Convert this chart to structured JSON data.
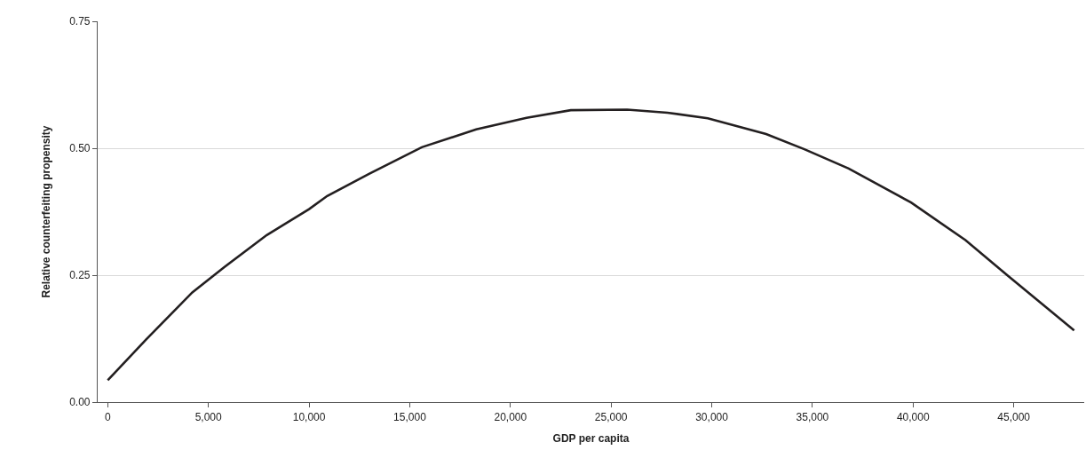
{
  "chart_data": {
    "type": "line",
    "xlabel": "GDP per capita",
    "ylabel": "Relative counterfeiting propensity",
    "x": [
      0,
      1900,
      4200,
      5800,
      7900,
      10000,
      10900,
      13000,
      15600,
      18300,
      20800,
      23000,
      25800,
      27800,
      29800,
      32700,
      34600,
      36800,
      39900,
      42600,
      44700,
      48000
    ],
    "series": [
      {
        "color": "#231f20",
        "values": [
          0.043,
          0.123,
          0.216,
          0.266,
          0.329,
          0.38,
          0.406,
          0.45,
          0.502,
          0.537,
          0.56,
          0.575,
          0.576,
          0.57,
          0.559,
          0.528,
          0.498,
          0.46,
          0.393,
          0.319,
          0.249,
          0.141
        ]
      }
    ],
    "xlim": [
      -500,
      48500
    ],
    "xticks": [
      {
        "value": 0,
        "label": "0"
      },
      {
        "value": 5000,
        "label": "5,000"
      },
      {
        "value": 10000,
        "label": "10,000"
      },
      {
        "value": 15000,
        "label": "15,000"
      },
      {
        "value": 20000,
        "label": "20,000"
      },
      {
        "value": 25000,
        "label": "25,000"
      },
      {
        "value": 30000,
        "label": "30,000"
      },
      {
        "value": 35000,
        "label": "35,000"
      },
      {
        "value": 40000,
        "label": "40,000"
      },
      {
        "value": 45000,
        "label": "45,000"
      }
    ],
    "ylim": [
      0,
      0.75
    ],
    "yticks": [
      {
        "value": 0,
        "label": "0.00"
      },
      {
        "value": 0.25,
        "label": "0.25"
      },
      {
        "value": 0.5,
        "label": "0.50"
      },
      {
        "value": 0.75,
        "label": "0.75"
      }
    ],
    "grid": "y",
    "marker": "none",
    "line_style": "solid"
  }
}
